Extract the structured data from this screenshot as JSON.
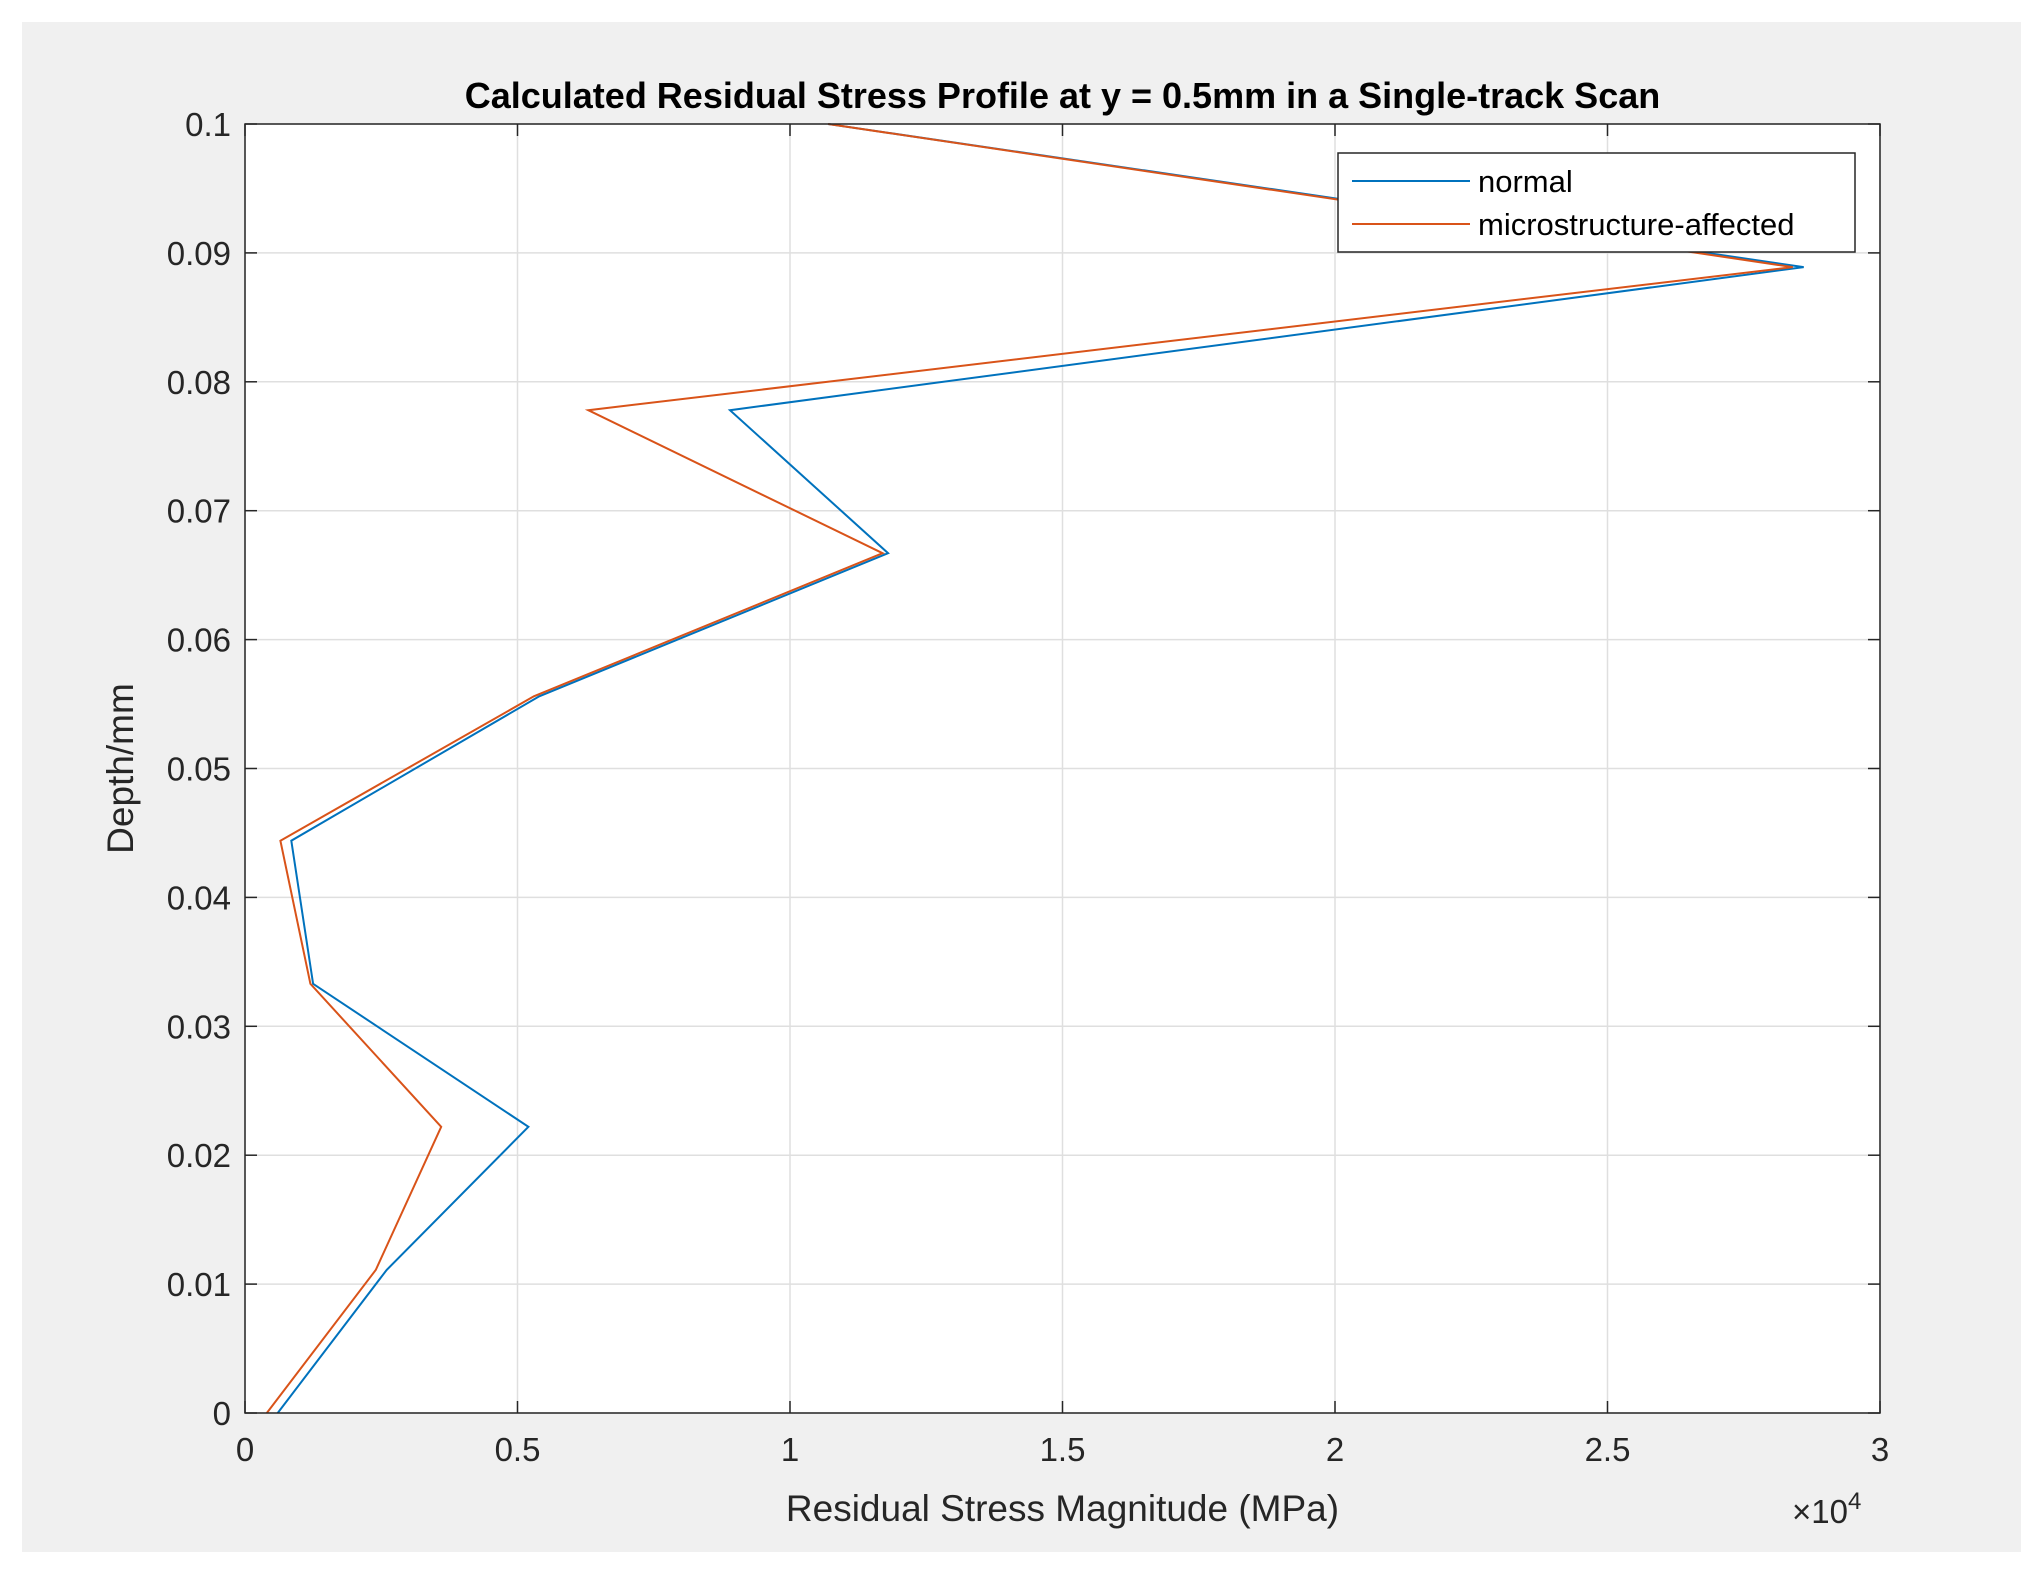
{
  "chart_data": {
    "type": "line",
    "title": "Calculated Residual Stress Profile at y = 0.5mm in a Single-track Scan",
    "xlabel": "Residual Stress Magnitude (MPa)",
    "ylabel": "Depth/mm",
    "x_exponent_label": "×10",
    "x_exponent_power": "4",
    "x_scale": 10000,
    "xlim": [
      0,
      30000
    ],
    "ylim": [
      0,
      0.1
    ],
    "xticks": [
      0,
      5000,
      10000,
      15000,
      20000,
      25000,
      30000
    ],
    "xtick_labels": [
      "0",
      "0.5",
      "1",
      "1.5",
      "2",
      "2.5",
      "3"
    ],
    "yticks": [
      0,
      0.01,
      0.02,
      0.03,
      0.04,
      0.05,
      0.06,
      0.07,
      0.08,
      0.09,
      0.1
    ],
    "ytick_labels": [
      "0",
      "0.01",
      "0.02",
      "0.03",
      "0.04",
      "0.05",
      "0.06",
      "0.07",
      "0.08",
      "0.09",
      "0.1"
    ],
    "grid": true,
    "legend_position": "top-right",
    "series": [
      {
        "name": "normal",
        "color": "#0072BD",
        "points": [
          {
            "x": 600,
            "y": 0
          },
          {
            "x": 2600,
            "y": 0.0111
          },
          {
            "x": 5200,
            "y": 0.0222
          },
          {
            "x": 1250,
            "y": 0.0333
          },
          {
            "x": 850,
            "y": 0.0444
          },
          {
            "x": 5400,
            "y": 0.0556
          },
          {
            "x": 11800,
            "y": 0.0667
          },
          {
            "x": 8900,
            "y": 0.0778
          },
          {
            "x": 28600,
            "y": 0.0889
          },
          {
            "x": 10700,
            "y": 0.1
          }
        ]
      },
      {
        "name": "microstructure-affected",
        "color": "#D95319",
        "points": [
          {
            "x": 400,
            "y": 0
          },
          {
            "x": 2400,
            "y": 0.0111
          },
          {
            "x": 3600,
            "y": 0.0222
          },
          {
            "x": 1200,
            "y": 0.0333
          },
          {
            "x": 650,
            "y": 0.0444
          },
          {
            "x": 5300,
            "y": 0.0556
          },
          {
            "x": 11700,
            "y": 0.0667
          },
          {
            "x": 6300,
            "y": 0.0778
          },
          {
            "x": 28400,
            "y": 0.0889
          },
          {
            "x": 10700,
            "y": 0.1
          }
        ]
      }
    ]
  }
}
